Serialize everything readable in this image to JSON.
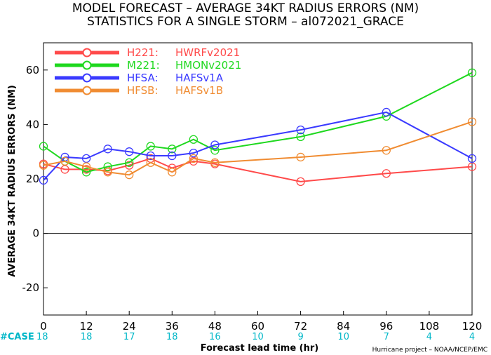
{
  "titles": {
    "line1": "MODEL FORECAST – AVERAGE 34KT RADIUS ERRORS (NM)",
    "line2": "STATISTICS FOR A SINGLE STORM – al072021_GRACE"
  },
  "footer": {
    "case_label": "#CASE",
    "credit": "Hurricane project – NOAA/NCEP/EMC"
  },
  "chart_data": {
    "type": "line",
    "xlabel": "Forecast lead time (hr)",
    "ylabel": "AVERAGE 34KT RADIUS ERRORS (NM)",
    "xlim": [
      0,
      120
    ],
    "ylim": [
      -30,
      70
    ],
    "xticks": [
      "0",
      "12",
      "24",
      "36",
      "48",
      "60",
      "72",
      "84",
      "96",
      "108",
      "120"
    ],
    "yticks": [
      "-20",
      "0",
      "20",
      "40",
      "60"
    ],
    "zero_line": 0,
    "grid": false,
    "legend_position": "top-left",
    "cases": [
      "18",
      "18",
      "17",
      "18",
      "16",
      "10",
      "9",
      "10",
      "7",
      "4",
      "4"
    ],
    "series": [
      {
        "code": "H221:",
        "name": "HWRFv2021",
        "color": "#ff4a4a",
        "points": [
          [
            0,
            25.5
          ],
          [
            6,
            23.5
          ],
          [
            12,
            23.5
          ],
          [
            18,
            23.0
          ],
          [
            24,
            25.0
          ],
          [
            30,
            27.5
          ],
          [
            36,
            24.0
          ],
          [
            42,
            26.5
          ],
          [
            48,
            25.5
          ],
          [
            72,
            19.0
          ],
          [
            96,
            22.0
          ],
          [
            120,
            24.5
          ]
        ]
      },
      {
        "code": "M221:",
        "name": "HMONv2021",
        "color": "#1ed81e",
        "points": [
          [
            0,
            32.0
          ],
          [
            6,
            26.5
          ],
          [
            12,
            22.5
          ],
          [
            18,
            24.5
          ],
          [
            24,
            26.0
          ],
          [
            30,
            32.0
          ],
          [
            36,
            31.0
          ],
          [
            42,
            34.5
          ],
          [
            48,
            30.5
          ],
          [
            72,
            35.5
          ],
          [
            96,
            43.0
          ],
          [
            120,
            59.0
          ]
        ]
      },
      {
        "code": "HFSA:",
        "name": "HAFSv1A",
        "color": "#3a3aff",
        "points": [
          [
            0,
            19.5
          ],
          [
            6,
            28.0
          ],
          [
            12,
            27.5
          ],
          [
            18,
            31.0
          ],
          [
            24,
            30.0
          ],
          [
            30,
            28.5
          ],
          [
            36,
            28.5
          ],
          [
            42,
            29.5
          ],
          [
            48,
            32.5
          ],
          [
            72,
            38.0
          ],
          [
            96,
            44.5
          ],
          [
            120,
            27.5
          ]
        ]
      },
      {
        "code": "HFSB:",
        "name": "HAFSv1B",
        "color": "#f08c32",
        "points": [
          [
            0,
            25.0
          ],
          [
            6,
            26.5
          ],
          [
            12,
            24.5
          ],
          [
            18,
            22.5
          ],
          [
            24,
            21.5
          ],
          [
            30,
            26.0
          ],
          [
            36,
            22.5
          ],
          [
            42,
            27.5
          ],
          [
            48,
            26.0
          ],
          [
            72,
            28.0
          ],
          [
            96,
            30.5
          ],
          [
            120,
            41.0
          ]
        ]
      }
    ]
  }
}
